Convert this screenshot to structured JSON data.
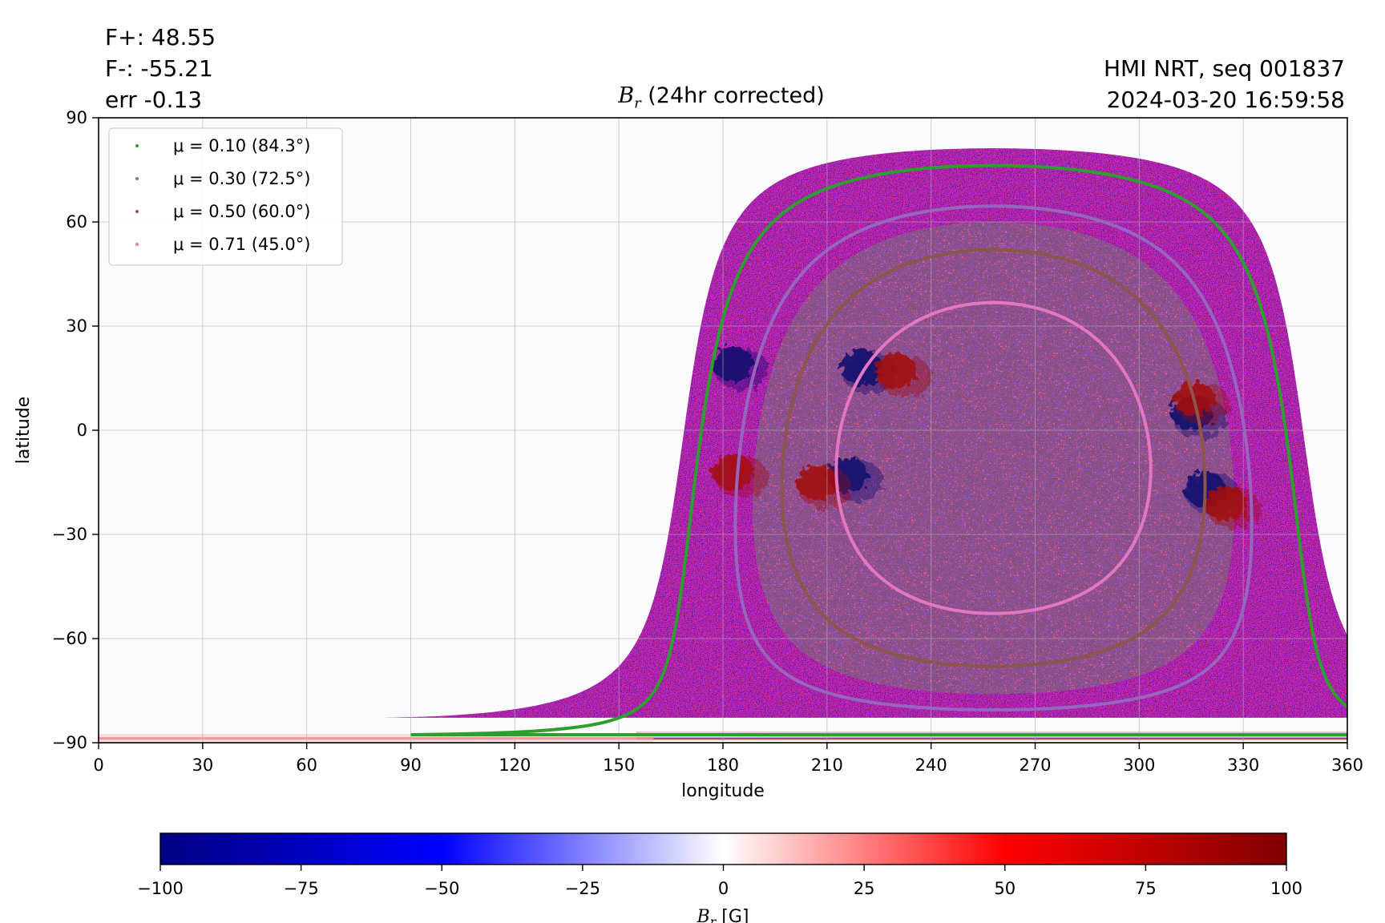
{
  "header": {
    "f_plus": "F+: 48.55",
    "f_minus": "F-: -55.21",
    "err": "err -0.13",
    "source": "HMI NRT, seq 001837",
    "timestamp": "2024-03-20 16:59:58"
  },
  "chart_data": {
    "type": "heatmap",
    "title_symbol": "B",
    "title_subscript": "r",
    "title_suffix": " (24hr corrected)",
    "xlabel": "longitude",
    "ylabel": "latitude",
    "xlim": [
      0,
      360
    ],
    "ylim": [
      -90,
      90
    ],
    "xticks": [
      0,
      30,
      60,
      90,
      120,
      150,
      180,
      210,
      240,
      270,
      300,
      330,
      360
    ],
    "yticks": [
      -90,
      -60,
      -30,
      0,
      30,
      60,
      90
    ],
    "ytick_labels": [
      "−90",
      "−60",
      "−30",
      "0",
      "30",
      "60",
      "90"
    ],
    "grid": true,
    "legend_position": "top-left",
    "disk_center_lon": 258,
    "disk_center_lat": -8,
    "series": [
      {
        "name": "μ = 0.10 (84.3°)",
        "mu": 0.1,
        "angle_deg": 84.3,
        "color": "#2ca02c"
      },
      {
        "name": "μ = 0.30 (72.5°)",
        "mu": 0.3,
        "angle_deg": 72.5,
        "color": "#9467bd"
      },
      {
        "name": "μ = 0.50 (60.0°)",
        "mu": 0.5,
        "angle_deg": 60.0,
        "color": "#8c564b"
      },
      {
        "name": "μ = 0.71 (45.0°)",
        "mu": 0.71,
        "angle_deg": 45.0,
        "color": "#e377c2"
      }
    ],
    "active_regions": [
      {
        "lon": 220,
        "lat": 18,
        "polarity": "negative"
      },
      {
        "lon": 230,
        "lat": 17,
        "polarity": "positive"
      },
      {
        "lon": 216,
        "lat": -13,
        "polarity": "negative"
      },
      {
        "lon": 207,
        "lat": -15,
        "polarity": "positive"
      },
      {
        "lon": 319,
        "lat": -17,
        "polarity": "negative"
      },
      {
        "lon": 325,
        "lat": -21,
        "polarity": "positive"
      },
      {
        "lon": 183,
        "lat": 19,
        "polarity": "negative"
      },
      {
        "lon": 183,
        "lat": -12,
        "polarity": "positive"
      },
      {
        "lon": 315,
        "lat": 5,
        "polarity": "negative"
      },
      {
        "lon": 316,
        "lat": 9,
        "polarity": "positive"
      }
    ],
    "colorbar": {
      "label_symbol": "B",
      "label_subscript": "r",
      "label_unit": " [G]",
      "min": -100,
      "max": 100,
      "ticks": [
        -100,
        -75,
        -50,
        -25,
        0,
        25,
        50,
        75,
        100
      ],
      "tick_labels": [
        "−100",
        "−75",
        "−50",
        "−25",
        "0",
        "25",
        "50",
        "75",
        "100"
      ],
      "colormap": "seismic",
      "colors": [
        "#000080",
        "#0000ff",
        "#ffffff",
        "#ff0000",
        "#800000"
      ]
    }
  }
}
